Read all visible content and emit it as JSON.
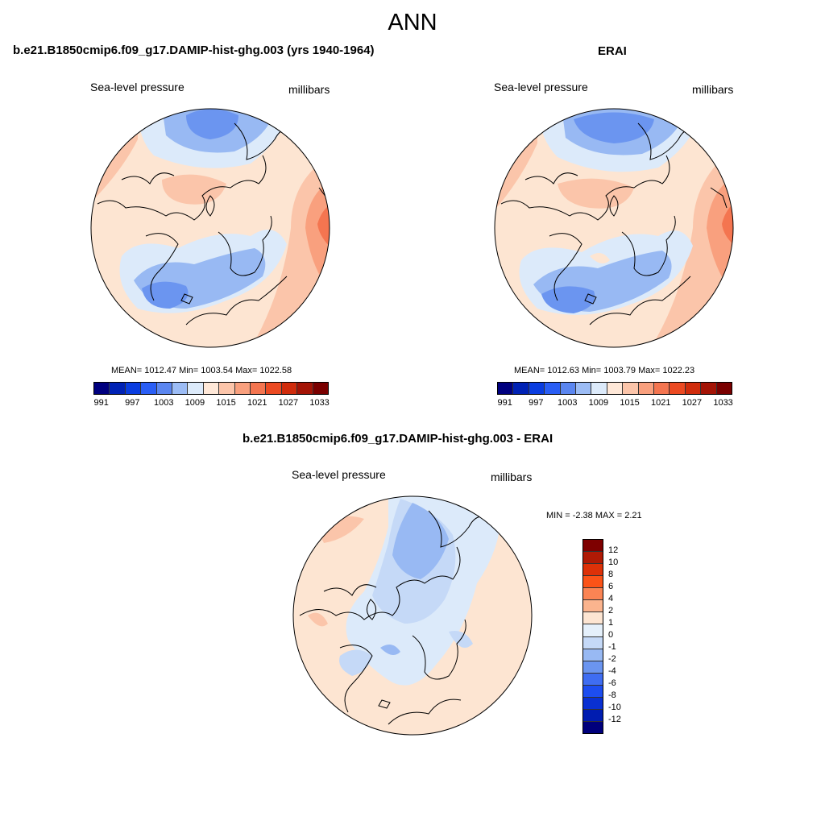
{
  "title": "ANN",
  "panels": {
    "model": {
      "title": "b.e21.B1850cmip6.f09_g17.DAMIP-hist-ghg.003 (yrs 1940-1964)",
      "variable": "Sea-level pressure",
      "units": "millibars",
      "stats": "MEAN= 1012.47  Min= 1003.54  Max= 1022.58"
    },
    "obs": {
      "title": "ERAI",
      "variable": "Sea-level pressure",
      "units": "millibars",
      "stats": "MEAN= 1012.63  Min= 1003.79  Max= 1022.23"
    },
    "diff": {
      "title": "b.e21.B1850cmip6.f09_g17.DAMIP-hist-ghg.003 - ERAI",
      "variable": "Sea-level pressure",
      "units": "millibars",
      "stats": "MIN =  -2.38 MAX =   2.21"
    }
  },
  "colorbar_abs": {
    "colors": [
      "#00007f",
      "#0022b5",
      "#0a3de0",
      "#2a5ef5",
      "#5b86f0",
      "#9cbcf5",
      "#dceafa",
      "#ffe8d8",
      "#fcc5aa",
      "#f9a07e",
      "#f47550",
      "#ec4a22",
      "#d02c0c",
      "#a41406",
      "#7a0000"
    ],
    "tick_labels": [
      "991",
      "997",
      "1003",
      "1009",
      "1015",
      "1021",
      "1027",
      "1033"
    ]
  },
  "colorbar_diff": {
    "colors": [
      "#7e0000",
      "#b01a05",
      "#dd3108",
      "#fb5318",
      "#fa8454",
      "#fbb48e",
      "#fde5d2",
      "#e5f0fb",
      "#c5d9f7",
      "#98b9f3",
      "#6b95f0",
      "#3f6df2",
      "#1d4df0",
      "#0a30d2",
      "#001cb0",
      "#00007c"
    ],
    "tick_labels": [
      "12",
      "10",
      "8",
      "6",
      "4",
      "2",
      "1",
      "0",
      "-1",
      "-2",
      "-4",
      "-6",
      "-8",
      "-10",
      "-12"
    ]
  },
  "colors": {
    "background": "#ffffff",
    "coast": "#000000",
    "neg_strong": "#6b95f0",
    "neg_mid": "#98b9f3",
    "neg_weak": "#dceafa",
    "pos_weak": "#fde5d2",
    "pos_mid": "#fbc5aa",
    "pos_strong": "#f9a07e",
    "pos_max": "#f47550"
  }
}
